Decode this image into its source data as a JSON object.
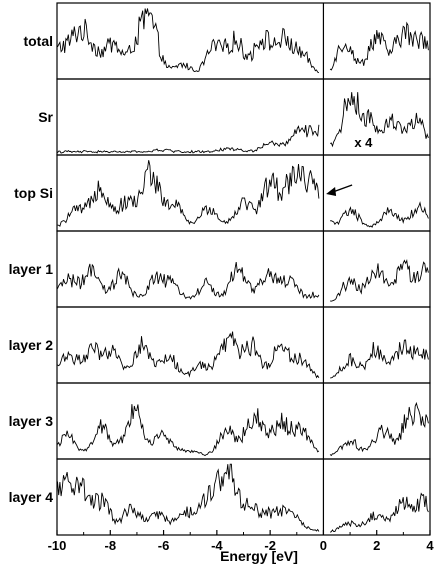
{
  "chart_data": {
    "type": "line",
    "xlabel": "Energy [eV]",
    "xlim": [
      -10,
      4
    ],
    "x_ticks": [
      "-10",
      "-8",
      "-6",
      "-4",
      "-2",
      "0",
      "2",
      "4"
    ],
    "fermi_level_marker": 0,
    "panels": [
      {
        "name": "total",
        "peaks": [
          {
            "x": -9.9,
            "y": 0.45
          },
          {
            "x": -9.2,
            "y": 0.65
          },
          {
            "x": -8.7,
            "y": 0.4
          },
          {
            "x": -7.9,
            "y": 0.55
          },
          {
            "x": -7.0,
            "y": 0.45
          },
          {
            "x": -6.5,
            "y": 0.88
          },
          {
            "x": -5.3,
            "y": 0.2
          },
          {
            "x": -4.1,
            "y": 0.5
          },
          {
            "x": -3.3,
            "y": 0.6
          },
          {
            "x": -2.3,
            "y": 0.65
          },
          {
            "x": -1.5,
            "y": 0.6
          },
          {
            "x": -0.8,
            "y": 0.35
          },
          {
            "x": 0.8,
            "y": 0.6
          },
          {
            "x": 2.0,
            "y": 0.7
          },
          {
            "x": 3.0,
            "y": 0.75
          },
          {
            "x": 3.8,
            "y": 0.65
          }
        ]
      },
      {
        "name": "Sr",
        "peaks": [
          {
            "x": -6.0,
            "y": 0.03
          },
          {
            "x": -3.5,
            "y": 0.06
          },
          {
            "x": -2.0,
            "y": 0.15
          },
          {
            "x": -1.0,
            "y": 0.3
          },
          {
            "x": -0.3,
            "y": 0.38
          },
          {
            "x": 1.0,
            "y": 0.9
          },
          {
            "x": 1.7,
            "y": 0.5
          },
          {
            "x": 2.6,
            "y": 0.55
          },
          {
            "x": 3.5,
            "y": 0.55
          }
        ]
      },
      {
        "name": "top Si",
        "peaks": [
          {
            "x": -9.3,
            "y": 0.3
          },
          {
            "x": -8.4,
            "y": 0.75
          },
          {
            "x": -7.4,
            "y": 0.45
          },
          {
            "x": -6.5,
            "y": 1.0
          },
          {
            "x": -5.6,
            "y": 0.4
          },
          {
            "x": -4.3,
            "y": 0.35
          },
          {
            "x": -3.0,
            "y": 0.45
          },
          {
            "x": -2.0,
            "y": 0.8
          },
          {
            "x": -1.1,
            "y": 0.95
          },
          {
            "x": -0.4,
            "y": 0.7
          },
          {
            "x": 1.0,
            "y": 0.3
          },
          {
            "x": 2.5,
            "y": 0.3
          },
          {
            "x": 3.6,
            "y": 0.35
          }
        ]
      },
      {
        "name": "layer 1",
        "peaks": [
          {
            "x": -9.6,
            "y": 0.45
          },
          {
            "x": -8.7,
            "y": 0.55
          },
          {
            "x": -7.6,
            "y": 0.5
          },
          {
            "x": -6.3,
            "y": 0.45
          },
          {
            "x": -5.6,
            "y": 0.3
          },
          {
            "x": -4.4,
            "y": 0.35
          },
          {
            "x": -3.2,
            "y": 0.6
          },
          {
            "x": -2.1,
            "y": 0.5
          },
          {
            "x": -1.3,
            "y": 0.4
          },
          {
            "x": -0.4,
            "y": 0.15
          },
          {
            "x": 1.0,
            "y": 0.4
          },
          {
            "x": 2.0,
            "y": 0.6
          },
          {
            "x": 3.0,
            "y": 0.6
          },
          {
            "x": 3.8,
            "y": 0.55
          }
        ]
      },
      {
        "name": "layer 2",
        "peaks": [
          {
            "x": -9.6,
            "y": 0.45
          },
          {
            "x": -8.7,
            "y": 0.5
          },
          {
            "x": -7.9,
            "y": 0.45
          },
          {
            "x": -6.8,
            "y": 0.6
          },
          {
            "x": -5.8,
            "y": 0.4
          },
          {
            "x": -4.6,
            "y": 0.25
          },
          {
            "x": -3.6,
            "y": 0.75
          },
          {
            "x": -2.7,
            "y": 0.6
          },
          {
            "x": -1.6,
            "y": 0.6
          },
          {
            "x": -0.8,
            "y": 0.35
          },
          {
            "x": 1.0,
            "y": 0.35
          },
          {
            "x": 2.0,
            "y": 0.55
          },
          {
            "x": 3.0,
            "y": 0.55
          },
          {
            "x": 3.8,
            "y": 0.5
          }
        ]
      },
      {
        "name": "layer 3",
        "peaks": [
          {
            "x": -9.6,
            "y": 0.35
          },
          {
            "x": -8.3,
            "y": 0.5
          },
          {
            "x": -7.1,
            "y": 0.8
          },
          {
            "x": -6.0,
            "y": 0.4
          },
          {
            "x": -5.0,
            "y": 0.08
          },
          {
            "x": -3.6,
            "y": 0.45
          },
          {
            "x": -2.6,
            "y": 0.7
          },
          {
            "x": -1.6,
            "y": 0.6
          },
          {
            "x": -0.8,
            "y": 0.45
          },
          {
            "x": 1.0,
            "y": 0.25
          },
          {
            "x": 2.2,
            "y": 0.45
          },
          {
            "x": 3.2,
            "y": 0.6
          },
          {
            "x": 3.8,
            "y": 0.55
          }
        ]
      },
      {
        "name": "layer 4",
        "peaks": [
          {
            "x": -9.8,
            "y": 0.8
          },
          {
            "x": -9.1,
            "y": 0.75
          },
          {
            "x": -8.3,
            "y": 0.5
          },
          {
            "x": -7.2,
            "y": 0.4
          },
          {
            "x": -6.2,
            "y": 0.3
          },
          {
            "x": -5.2,
            "y": 0.35
          },
          {
            "x": -4.3,
            "y": 0.6
          },
          {
            "x": -3.6,
            "y": 1.0
          },
          {
            "x": -2.8,
            "y": 0.45
          },
          {
            "x": -2.0,
            "y": 0.3
          },
          {
            "x": -1.3,
            "y": 0.35
          },
          {
            "x": -0.6,
            "y": 0.05
          },
          {
            "x": 1.0,
            "y": 0.15
          },
          {
            "x": 2.0,
            "y": 0.3
          },
          {
            "x": 3.0,
            "y": 0.5
          },
          {
            "x": 3.8,
            "y": 0.5
          }
        ]
      }
    ],
    "annotations": [
      {
        "panel": "Sr",
        "text": "x 4",
        "x": 1.5
      },
      {
        "panel": "top Si",
        "type": "arrow",
        "x": 0.1
      }
    ]
  },
  "colors": {
    "line": "#000000",
    "background": "#ffffff"
  }
}
